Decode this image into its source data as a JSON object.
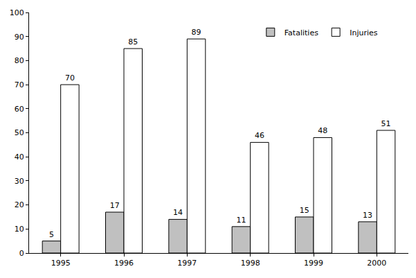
{
  "chart_data": {
    "type": "bar",
    "categories": [
      "1995",
      "1996",
      "1997",
      "1998",
      "1999",
      "2000"
    ],
    "series": [
      {
        "name": "Fatalities",
        "color": "#c0c0c0",
        "values": [
          5,
          17,
          14,
          11,
          15,
          13
        ]
      },
      {
        "name": "Injuries",
        "color": "#ffffff",
        "values": [
          70,
          85,
          89,
          46,
          48,
          51
        ]
      }
    ],
    "ylim": [
      0,
      100
    ],
    "yticks": [
      0,
      10,
      20,
      30,
      40,
      50,
      60,
      70,
      80,
      90,
      100
    ],
    "grid": false,
    "legend": "upper right",
    "data_labels": true
  }
}
